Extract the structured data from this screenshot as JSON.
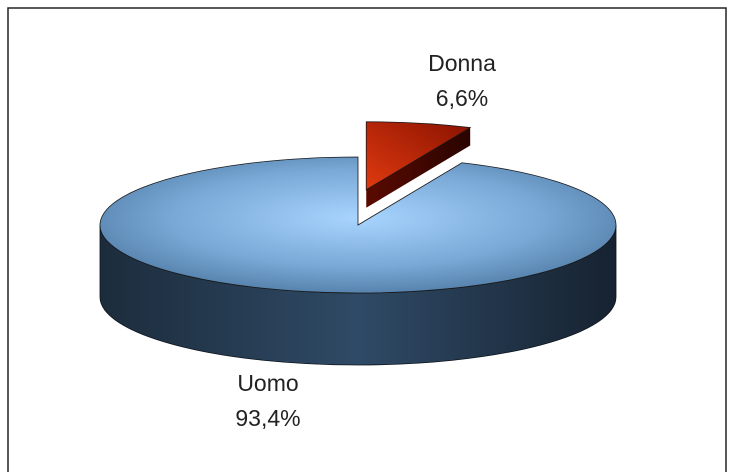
{
  "chart_data": {
    "type": "pie3d",
    "categories": [
      "Uomo",
      "Donna"
    ],
    "values": [
      93.4,
      6.6
    ],
    "value_labels": [
      "93,4%",
      "6,6%"
    ],
    "colors": [
      "#7fb2e0",
      "#c42a08"
    ],
    "explode": [
      0,
      1
    ]
  }
}
